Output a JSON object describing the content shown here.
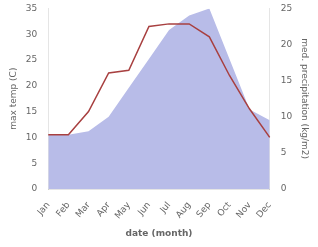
{
  "chart_data": {
    "type": "line",
    "categories": [
      "Jan",
      "Feb",
      "Mar",
      "Apr",
      "May",
      "Jun",
      "Jul",
      "Aug",
      "Sep",
      "Oct",
      "Nov",
      "Dec"
    ],
    "series": [
      {
        "type": "area",
        "color": "#b8bce8",
        "axis": "y2",
        "values": [
          7.5,
          7.5,
          8.0,
          10.0,
          14.0,
          18.0,
          22.0,
          24.0,
          25.0,
          18.0,
          11.0,
          9.5
        ]
      },
      {
        "type": "line",
        "color": "#a84040",
        "values": [
          10.5,
          10.5,
          15.0,
          22.5,
          23.0,
          31.5,
          32.0,
          32.0,
          29.5,
          22.0,
          15.5,
          10.0
        ]
      }
    ],
    "xlabel": "date (month)",
    "ylabel": "max temp (C)",
    "y2label": "med. precipitation (kg/m2)",
    "ylim": [
      0,
      35
    ],
    "yticks": [
      0,
      5,
      10,
      15,
      20,
      25,
      30,
      35
    ],
    "y2lim": [
      0,
      25
    ],
    "y2ticks": [
      0,
      5,
      10,
      15,
      20,
      25
    ],
    "grid": false
  }
}
